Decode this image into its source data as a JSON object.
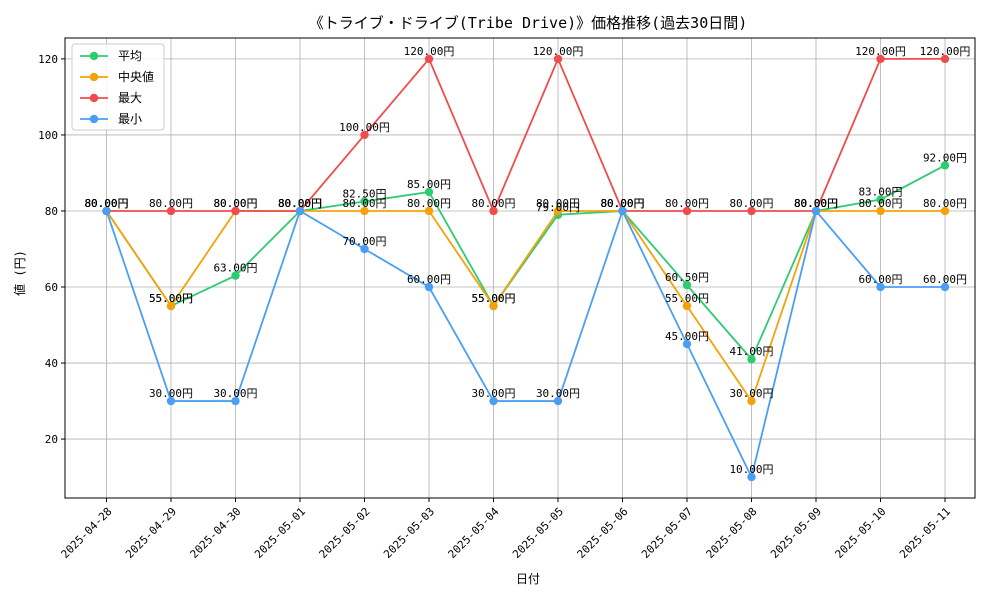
{
  "chart_data": {
    "type": "line",
    "title": "《トライブ・ドライブ(Tribe Drive)》価格推移(過去30日間)",
    "xlabel": "日付",
    "ylabel": "値 (円)",
    "categories": [
      "2025-04-28",
      "2025-04-29",
      "2025-04-30",
      "2025-05-01",
      "2025-05-02",
      "2025-05-03",
      "2025-05-04",
      "2025-05-05",
      "2025-05-06",
      "2025-05-07",
      "2025-05-08",
      "2025-05-09",
      "2025-05-10",
      "2025-05-11"
    ],
    "ylim": [
      4.5,
      125.5
    ],
    "yticks": [
      20,
      40,
      60,
      80,
      100,
      120
    ],
    "grid": true,
    "legend_position": "top-left",
    "series": [
      {
        "name": "平均",
        "color": "#2ecc71",
        "values": [
          80,
          55,
          63,
          80,
          82.5,
          85,
          55,
          79,
          80,
          60.5,
          41,
          80,
          83,
          92
        ],
        "labels": [
          "80.00円",
          "55.00円",
          "63.00円",
          "80.00円",
          "82.50円",
          "85.00円",
          "55.00円",
          "79.00円",
          "80.00円",
          "60.50円",
          "41.00円",
          "80.00円",
          "83.00円",
          "92.00円"
        ]
      },
      {
        "name": "中央値",
        "color": "#f5a20a",
        "values": [
          80,
          55,
          80,
          80,
          80,
          80,
          55,
          80,
          80,
          55,
          30,
          80,
          80,
          80
        ],
        "labels": [
          "80.00円",
          "55.00円",
          "80.00円",
          "80.00円",
          "80.00円",
          "80.00円",
          "55.00円",
          "80.00円",
          "80.00円",
          "55.00円",
          "30.00円",
          "80.00円",
          "80.00円",
          "80.00円"
        ]
      },
      {
        "name": "最大",
        "color": "#ef4d4d",
        "values": [
          80,
          80,
          80,
          80,
          100,
          120,
          80,
          120,
          80,
          80,
          80,
          80,
          120,
          120
        ],
        "labels": [
          "80.00円",
          "80.00円",
          "80.00円",
          "80.00円",
          "100.00円",
          "120.00円",
          "80.00円",
          "120.00円",
          "80.00円",
          "80.00円",
          "80.00円",
          "80.00円",
          "120.00円",
          "120.00円"
        ]
      },
      {
        "name": "最小",
        "color": "#4a9ff5",
        "values": [
          80,
          30,
          30,
          80,
          70,
          60,
          30,
          30,
          80,
          45,
          10,
          80,
          60,
          60
        ],
        "labels": [
          "80.00円",
          "30.00円",
          "30.00円",
          "80.00円",
          "70.00円",
          "60.00円",
          "30.00円",
          "30.00円",
          "80.00円",
          "45.00円",
          "10.00円",
          "80.00円",
          "60.00円",
          "60.00円"
        ]
      }
    ]
  }
}
